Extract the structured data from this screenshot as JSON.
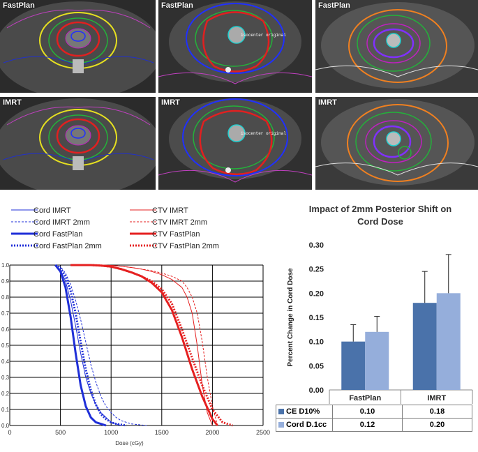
{
  "panels": [
    {
      "label": "FastPlan",
      "iso": ""
    },
    {
      "label": "FastPlan",
      "iso": "isocenter original"
    },
    {
      "label": "FastPlan",
      "iso": ""
    },
    {
      "label": "IMRT",
      "iso": ""
    },
    {
      "label": "IMRT",
      "iso": "isocenter original"
    },
    {
      "label": "IMRT",
      "iso": ""
    }
  ],
  "colors": {
    "cord": "#1f2fd8",
    "ctv": "#e52020",
    "bar_ce": "#4a72aa",
    "bar_cord": "#95aedb"
  },
  "chart_data": [
    {
      "type": "line",
      "xlabel": "Dose (cGy)",
      "ylabel": "",
      "xlim": [
        0,
        2500
      ],
      "ylim": [
        0,
        1.0
      ],
      "x_ticks": [
        0,
        500,
        1000,
        1500,
        2000,
        2500
      ],
      "y_ticks": [
        0,
        0.1,
        0.2,
        0.3,
        0.4,
        0.5,
        0.6,
        0.7,
        0.8,
        0.9,
        1.0
      ],
      "y_tick_labels": [
        "0.0",
        "0.1",
        "0.2",
        "0.3",
        "0.4",
        "0.5",
        "0.6",
        "0.7",
        "0.8",
        "0.9",
        "1.0"
      ],
      "legend": [
        {
          "name": "Cord IMRT",
          "color": "cord",
          "style": "thin"
        },
        {
          "name": "Cord IMRT 2mm",
          "color": "cord",
          "style": "thin-dash"
        },
        {
          "name": "Cord FastPlan",
          "color": "cord",
          "style": "thick"
        },
        {
          "name": "Cord FastPlan 2mm",
          "color": "cord",
          "style": "thick-dot"
        },
        {
          "name": "CTV IMRT",
          "color": "ctv",
          "style": "thin"
        },
        {
          "name": "CTV IMRT 2mm",
          "color": "ctv",
          "style": "thin-dash"
        },
        {
          "name": "CTV FastPlan",
          "color": "ctv",
          "style": "thick"
        },
        {
          "name": "CTV FastPlan 2mm",
          "color": "ctv",
          "style": "thick-dot"
        }
      ],
      "series": [
        {
          "name": "Cord IMRT",
          "x": [
            450,
            500,
            550,
            600,
            650,
            700,
            750,
            800,
            850,
            900,
            950,
            1000,
            1100
          ],
          "y": [
            1.0,
            0.97,
            0.9,
            0.78,
            0.62,
            0.45,
            0.3,
            0.2,
            0.13,
            0.08,
            0.05,
            0.02,
            0.0
          ]
        },
        {
          "name": "Cord IMRT 2mm",
          "x": [
            450,
            500,
            550,
            600,
            650,
            700,
            750,
            800,
            850,
            900,
            950,
            1000,
            1050,
            1100,
            1200,
            1350
          ],
          "y": [
            1.0,
            0.99,
            0.95,
            0.88,
            0.78,
            0.66,
            0.52,
            0.38,
            0.27,
            0.18,
            0.12,
            0.08,
            0.05,
            0.03,
            0.01,
            0.0
          ]
        },
        {
          "name": "Cord FastPlan",
          "x": [
            450,
            500,
            550,
            600,
            650,
            700,
            750,
            800,
            850,
            900,
            950
          ],
          "y": [
            1.0,
            0.96,
            0.86,
            0.68,
            0.45,
            0.25,
            0.12,
            0.05,
            0.02,
            0.01,
            0.0
          ]
        },
        {
          "name": "Cord FastPlan 2mm",
          "x": [
            450,
            500,
            550,
            600,
            650,
            700,
            750,
            800,
            850,
            900,
            950,
            1000,
            1050,
            1150
          ],
          "y": [
            1.0,
            0.98,
            0.93,
            0.84,
            0.7,
            0.52,
            0.35,
            0.22,
            0.13,
            0.07,
            0.04,
            0.02,
            0.01,
            0.0
          ]
        },
        {
          "name": "CTV IMRT",
          "x": [
            600,
            900,
            1000,
            1100,
            1200,
            1300,
            1400,
            1500,
            1600,
            1700,
            1750,
            1800,
            1850,
            1900,
            1950,
            2000
          ],
          "y": [
            1.0,
            1.0,
            0.998,
            0.993,
            0.985,
            0.975,
            0.96,
            0.94,
            0.91,
            0.86,
            0.8,
            0.7,
            0.5,
            0.25,
            0.08,
            0.0
          ]
        },
        {
          "name": "CTV IMRT 2mm",
          "x": [
            600,
            900,
            1000,
            1100,
            1200,
            1300,
            1400,
            1500,
            1600,
            1700,
            1750,
            1800,
            1850,
            1900,
            1950,
            2000,
            2050
          ],
          "y": [
            1.0,
            1.0,
            0.998,
            0.993,
            0.985,
            0.975,
            0.965,
            0.95,
            0.93,
            0.9,
            0.86,
            0.8,
            0.7,
            0.52,
            0.3,
            0.12,
            0.0
          ]
        },
        {
          "name": "CTV FastPlan",
          "x": [
            600,
            800,
            900,
            1000,
            1100,
            1200,
            1300,
            1400,
            1500,
            1600,
            1700,
            1800,
            1900,
            2000,
            2050
          ],
          "y": [
            1.0,
            1.0,
            0.997,
            0.99,
            0.975,
            0.955,
            0.93,
            0.89,
            0.83,
            0.72,
            0.55,
            0.35,
            0.18,
            0.04,
            0.0
          ]
        },
        {
          "name": "CTV FastPlan 2mm",
          "x": [
            600,
            800,
            900,
            1000,
            1100,
            1200,
            1300,
            1400,
            1500,
            1600,
            1700,
            1800,
            1900,
            2000,
            2100,
            2200
          ],
          "y": [
            1.0,
            1.0,
            0.997,
            0.99,
            0.975,
            0.955,
            0.93,
            0.9,
            0.85,
            0.76,
            0.6,
            0.42,
            0.25,
            0.1,
            0.02,
            0.0
          ]
        }
      ]
    },
    {
      "type": "bar",
      "title": "Impact of 2mm Posterior Shift on Cord Dose",
      "title_lines": [
        "Impact of 2mm Posterior Shift on",
        "Cord Dose"
      ],
      "ylabel": "Percent Change in Cord Dose",
      "ylim": [
        0,
        0.3
      ],
      "y_ticks": [
        "0.00",
        "0.05",
        "0.10",
        "0.15",
        "0.20",
        "0.25",
        "0.30"
      ],
      "categories": [
        "FastPlan",
        "IMRT"
      ],
      "series": [
        {
          "name": "CE D10%",
          "color": "bar_ce",
          "values": [
            0.1,
            0.18
          ],
          "errors": [
            0.035,
            0.065
          ],
          "labels": [
            "0.10",
            "0.18"
          ]
        },
        {
          "name": "Cord D.1cc",
          "color": "bar_cord",
          "values": [
            0.12,
            0.2
          ],
          "errors": [
            0.032,
            0.08
          ],
          "labels": [
            "0.12",
            "0.20"
          ]
        }
      ]
    }
  ]
}
